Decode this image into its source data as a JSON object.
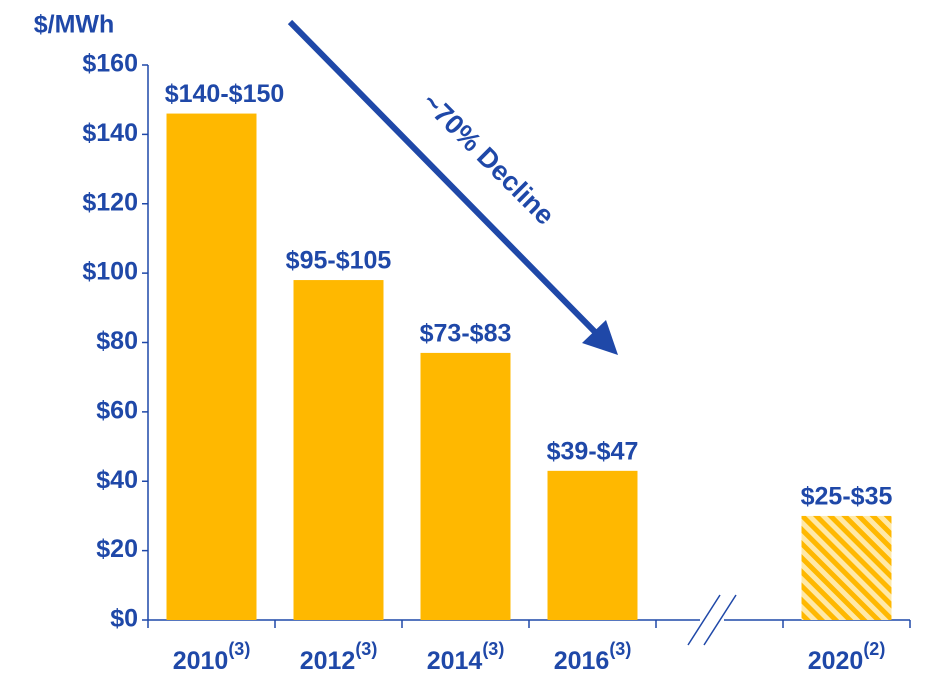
{
  "chart_data": {
    "type": "bar",
    "y_label": "$/MWh",
    "categories": [
      "2010",
      "2012",
      "2014",
      "2016",
      null,
      "2020"
    ],
    "category_notes": [
      "(3)",
      "(3)",
      "(3)",
      "(3)",
      null,
      "(2)"
    ],
    "values": [
      146,
      98,
      77,
      43,
      null,
      30
    ],
    "value_labels": [
      "$140-$150",
      "$95-$105",
      "$73-$83",
      "$39-$47",
      null,
      "$25-$35"
    ],
    "hatched": [
      false,
      false,
      false,
      false,
      false,
      true
    ],
    "color": "#FFB800",
    "text_color": "#1F48A8",
    "annotation": "~70% Decline",
    "ylim": [
      0,
      160
    ],
    "yticks": [
      {
        "value": 0,
        "label": "$0"
      },
      {
        "value": 20,
        "label": "$20"
      },
      {
        "value": 40,
        "label": "$40"
      },
      {
        "value": 60,
        "label": "$60"
      },
      {
        "value": 80,
        "label": "$80"
      },
      {
        "value": 100,
        "label": "$100"
      },
      {
        "value": 120,
        "label": "$120"
      },
      {
        "value": 140,
        "label": "$140"
      },
      {
        "value": 160,
        "label": "$160"
      }
    ],
    "grid": false
  }
}
